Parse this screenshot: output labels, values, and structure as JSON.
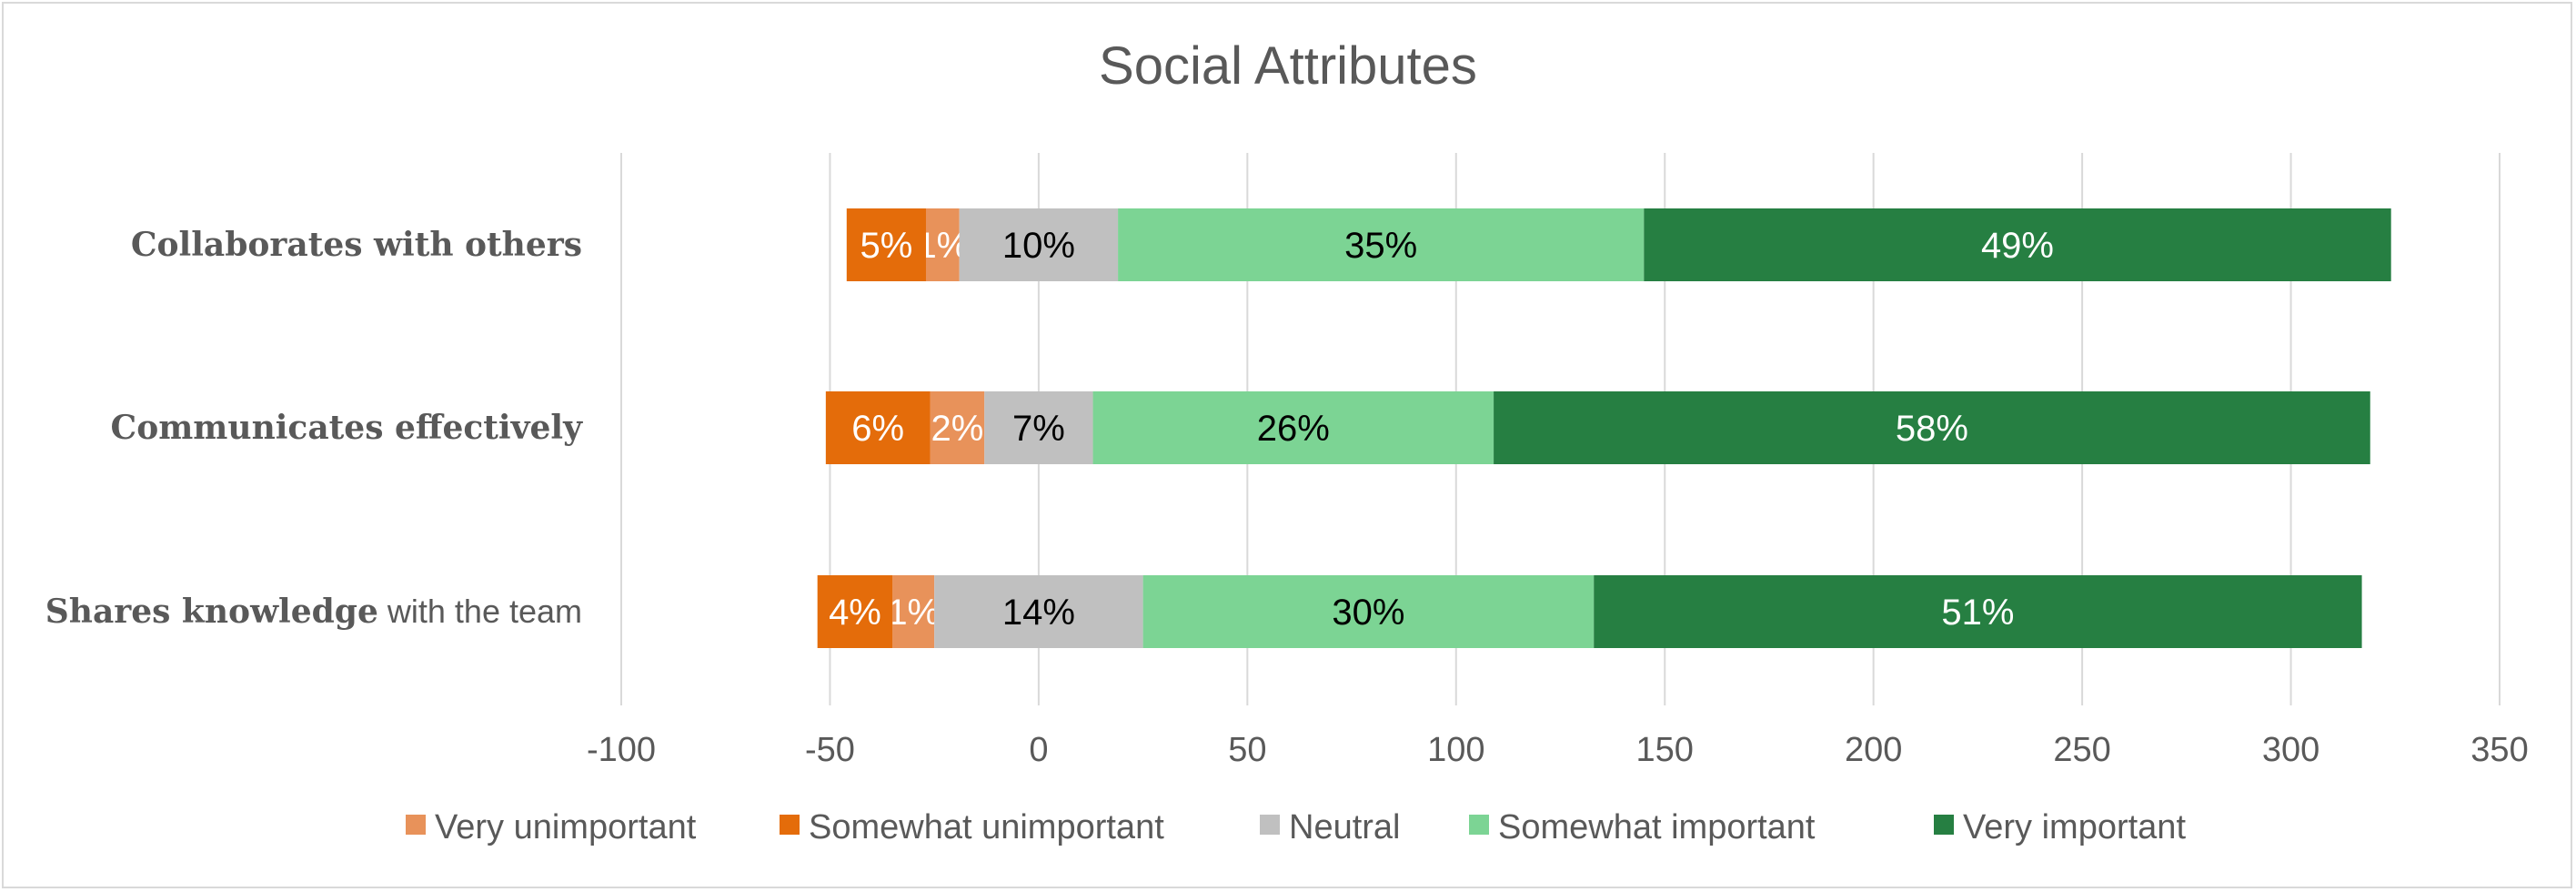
{
  "chart_data": {
    "type": "bar",
    "orientation": "horizontal",
    "stacked": "diverging",
    "title": "Social Attributes",
    "xlabel": "",
    "ylabel": "",
    "xlim": [
      -100,
      350
    ],
    "xticks": [
      -100,
      -50,
      0,
      50,
      100,
      150,
      200,
      250,
      300,
      350
    ],
    "grid": true,
    "legend_position": "bottom",
    "categories": [
      {
        "bold": "Collaborates with others",
        "rest": ""
      },
      {
        "bold": "Communicates effectively",
        "rest": ""
      },
      {
        "bold": "Shares knowledge",
        "rest": " with the team"
      }
    ],
    "series": [
      {
        "name": "Very unimportant",
        "color": "#E8925A",
        "label_color": "#ffffff",
        "segments": [
          [
            -27,
            -19
          ],
          [
            -26,
            -13
          ],
          [
            -35,
            -25
          ]
        ],
        "labels": [
          "1%",
          "2%",
          "1%"
        ]
      },
      {
        "name": "Somewhat unimportant",
        "color": "#E46C0A",
        "label_color": "#ffffff",
        "segments": [
          [
            -46,
            -27
          ],
          [
            -51,
            -26
          ],
          [
            -53,
            -35
          ]
        ],
        "labels": [
          "5%",
          "6%",
          "4%"
        ]
      },
      {
        "name": "Neutral",
        "color": "#C0C0C0",
        "label_color": "#000000",
        "segments": [
          [
            -19,
            19
          ],
          [
            -13,
            13
          ],
          [
            -25,
            25
          ]
        ],
        "labels": [
          "10%",
          "7%",
          "14%"
        ]
      },
      {
        "name": "Somewhat important",
        "color": "#7CD494",
        "label_color": "#000000",
        "segments": [
          [
            19,
            145
          ],
          [
            13,
            109
          ],
          [
            25,
            133
          ]
        ],
        "labels": [
          "35%",
          "26%",
          "30%"
        ]
      },
      {
        "name": "Very important",
        "color": "#267F42",
        "label_color": "#ffffff",
        "segments": [
          [
            145,
            324
          ],
          [
            109,
            319
          ],
          [
            133,
            317
          ]
        ],
        "labels": [
          "49%",
          "58%",
          "51%"
        ]
      }
    ],
    "legend_order": [
      0,
      1,
      2,
      3,
      4
    ]
  }
}
